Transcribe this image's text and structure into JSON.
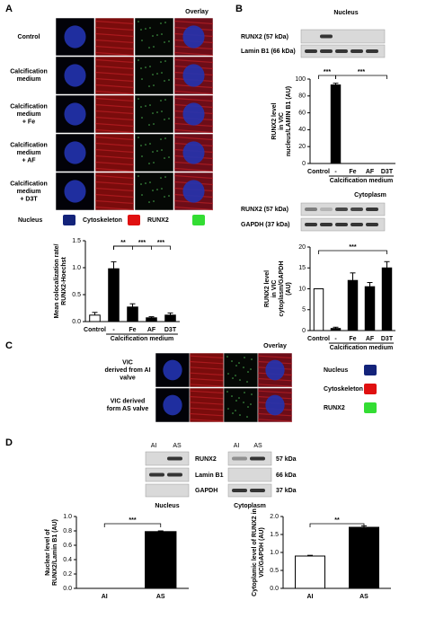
{
  "panel_labels": [
    "A",
    "B",
    "C",
    "D"
  ],
  "panel_a": {
    "column_header": "Overlay",
    "rows": [
      [
        "Control"
      ],
      [
        "Calcification",
        "medium"
      ],
      [
        "Calcification",
        "medium",
        "+ Fe"
      ],
      [
        "Calcification",
        "medium",
        "+ AF"
      ],
      [
        "Calcification",
        "medium",
        "+ D3T"
      ]
    ],
    "legend": [
      "Nucleus",
      "Cytoskeleton",
      "RUNX2"
    ]
  },
  "panel_b": {
    "nucleus_title": "Nucleus",
    "nucleus_bands": [
      "RUNX2 (57 kDa)",
      "Lamin B1 (66 kDa)"
    ],
    "cytoplasm_title": "Cytoplasm",
    "cytoplasm_bands": [
      "RUNX2 (57 kDa)",
      "GAPDH (37 kDa)"
    ]
  },
  "panel_c": {
    "column_header": "Overlay",
    "rows": [
      [
        "VIC",
        "derived from AI",
        "valve"
      ],
      [
        "VIC derived",
        "form AS valve"
      ]
    ],
    "legend": [
      "Nucleus",
      "Cytoskeleton",
      "RUNX2"
    ]
  },
  "panel_d": {
    "lanes": [
      "AI",
      "AS",
      "AI",
      "AS"
    ],
    "bands": [
      "RUNX2",
      "Lamin B1",
      "GAPDH"
    ],
    "sizes": [
      "57 kDa",
      "66 kDa",
      "37 kDa"
    ],
    "fractions": [
      "Nucleus",
      "Cytoplasm"
    ]
  },
  "chart_data": [
    {
      "type": "bar",
      "ylabel": [
        "Mean colocalization rate/",
        "RUNX2-Hoechst"
      ],
      "categories": [
        "Control",
        "-",
        "Fe",
        "AF",
        "D3T"
      ],
      "values": [
        0.12,
        0.98,
        0.27,
        0.07,
        0.12
      ],
      "errors": [
        0.05,
        0.13,
        0.06,
        0.02,
        0.04
      ],
      "bar_colors": [
        "#ffffff",
        "#000000",
        "#000000",
        "#000000",
        "#000000"
      ],
      "ylim": [
        0,
        1.5
      ],
      "yticks": [
        {
          "value": 0,
          "label": "0.0"
        },
        0.5,
        {
          "value": 1,
          "label": "1.0"
        },
        1.5
      ],
      "group_label": "Calcification medium",
      "annotations": [
        "**",
        "***",
        "***"
      ]
    },
    {
      "type": "bar",
      "ylabel": [
        "RUNX2 level",
        "in VIC",
        "nucleus/LAMIN B1 (AU)"
      ],
      "categories": [
        "Control",
        "-",
        "Fe",
        "AF",
        "D3T"
      ],
      "values": [
        0,
        93,
        0,
        0,
        0
      ],
      "errors": [
        0,
        2,
        0,
        0,
        0
      ],
      "bar_colors": [
        "#ffffff",
        "#000000",
        "#000000",
        "#000000",
        "#000000"
      ],
      "ylim": [
        0,
        100
      ],
      "yticks": [
        0,
        20,
        40,
        60,
        80,
        100
      ],
      "group_label": "Calcification medium",
      "annotations": [
        "***",
        "***"
      ]
    },
    {
      "type": "bar",
      "ylabel": [
        "RUNX2 level",
        "in VIC",
        "cytoplasm/GAPDH",
        "(AU)"
      ],
      "categories": [
        "Control",
        "-",
        "Fe",
        "AF",
        "D3T"
      ],
      "values": [
        10,
        0.5,
        12,
        10.5,
        15
      ],
      "errors": [
        0,
        0.3,
        1.8,
        1,
        1.5
      ],
      "bar_colors": [
        "#ffffff",
        "#000000",
        "#000000",
        "#000000",
        "#000000"
      ],
      "ylim": [
        0,
        20
      ],
      "yticks": [
        0,
        5,
        10,
        15,
        20
      ],
      "group_label": "Calcification medium",
      "annotations": [
        "***"
      ]
    },
    {
      "type": "bar",
      "ylabel": [
        "Nuclear level of",
        "RUNX2/Lamin B1 (AU)"
      ],
      "categories": [
        "AI",
        "AS"
      ],
      "values": [
        0,
        0.79
      ],
      "errors": [
        0,
        0.01
      ],
      "bar_colors": [
        "#ffffff",
        "#000000"
      ],
      "ylim": [
        0,
        1
      ],
      "yticks": [
        {
          "value": 0,
          "label": "0.0"
        },
        0.2,
        0.4,
        0.6,
        0.8,
        {
          "value": 1,
          "label": "1.0"
        }
      ],
      "annotations": [
        "***"
      ]
    },
    {
      "type": "bar",
      "ylabel": [
        "Cytoplamic level of RUNX2 in",
        "VIC/GAPDH (AU)"
      ],
      "categories": [
        "AI",
        "AS"
      ],
      "values": [
        0.9,
        1.7
      ],
      "errors": [
        0.02,
        0.04
      ],
      "bar_colors": [
        "#ffffff",
        "#000000"
      ],
      "ylim": [
        0,
        2
      ],
      "yticks": [
        {
          "value": 0,
          "label": "0.0"
        },
        0.5,
        {
          "value": 1,
          "label": "1.0"
        },
        1.5,
        {
          "value": 2,
          "label": "2.0"
        }
      ],
      "annotations": [
        "**"
      ]
    }
  ]
}
